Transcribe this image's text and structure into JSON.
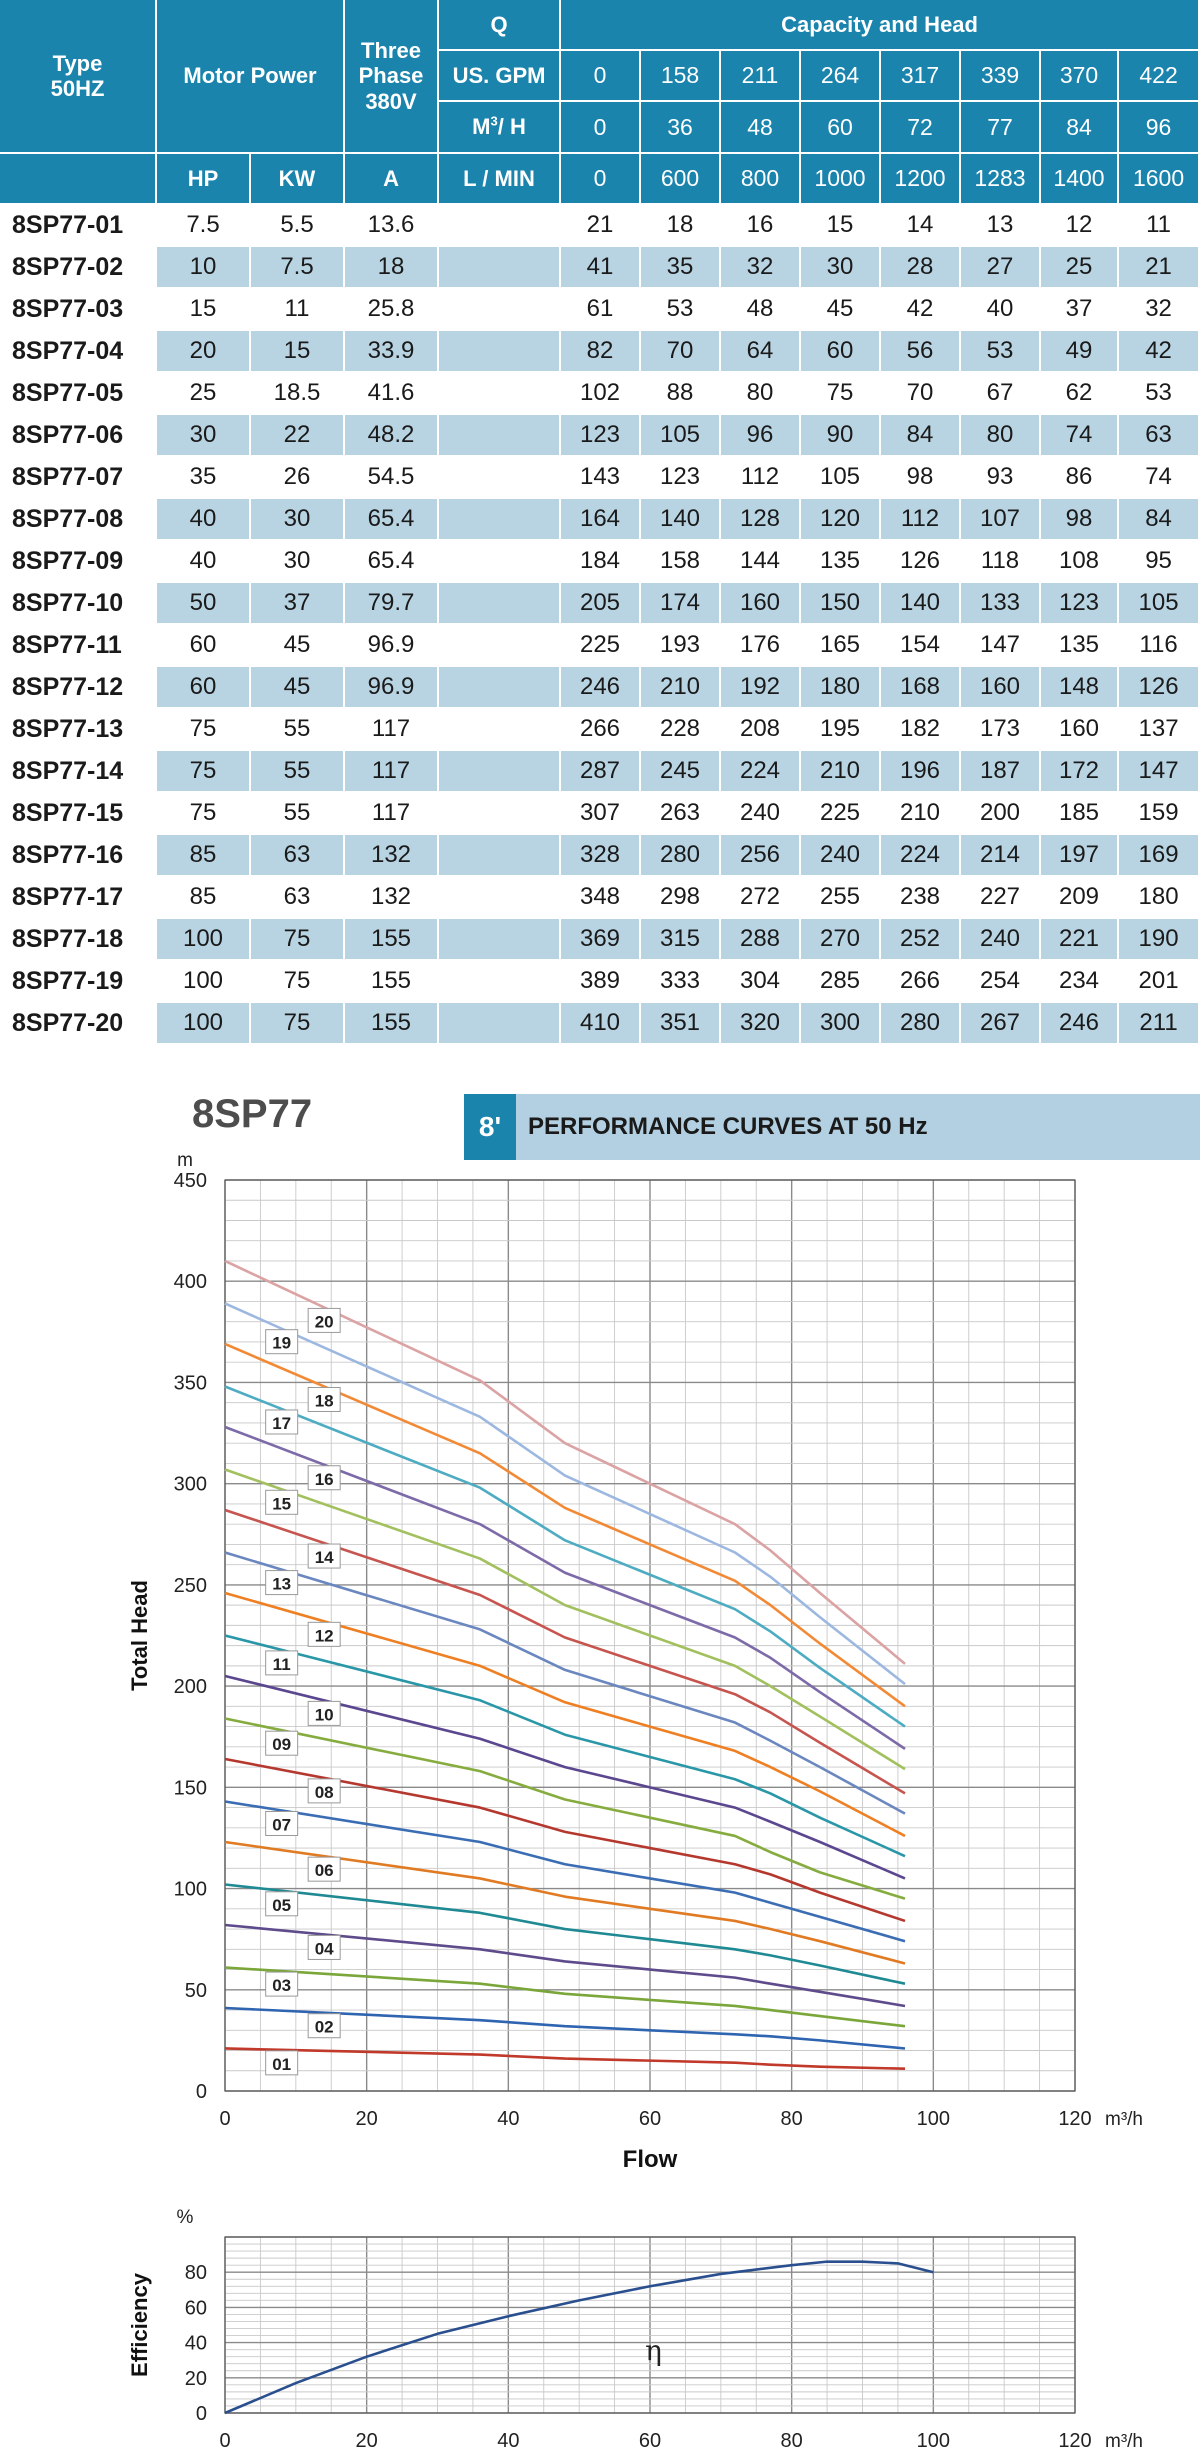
{
  "table": {
    "header": {
      "type_label": "Type",
      "type_sub": "50HZ",
      "motor_power": "Motor Power",
      "three_phase_l1": "Three",
      "three_phase_l2": "Phase",
      "three_phase_l3": "380V",
      "q_label": "Q",
      "capacity_head": "Capacity and Head",
      "usgpm_label": "US. GPM",
      "m3h_label_pre": "M",
      "m3h_label_sup": "3",
      "m3h_label_post": "/ H",
      "lmin_label": "L / MIN",
      "hp_label": "HP",
      "kw_label": "KW",
      "amp_label": "A",
      "usgpm": [
        "0",
        "158",
        "211",
        "264",
        "317",
        "339",
        "370",
        "422"
      ],
      "m3h": [
        "0",
        "36",
        "48",
        "60",
        "72",
        "77",
        "84",
        "96"
      ],
      "lmin": [
        "0",
        "600",
        "800",
        "1000",
        "1200",
        "1283",
        "1400",
        "1600"
      ]
    },
    "rows": [
      {
        "model": "8SP77-01",
        "hp": "7.5",
        "kw": "5.5",
        "amp": "13.6",
        "heads": [
          "21",
          "18",
          "16",
          "15",
          "14",
          "13",
          "12",
          "11"
        ]
      },
      {
        "model": "8SP77-02",
        "hp": "10",
        "kw": "7.5",
        "amp": "18",
        "heads": [
          "41",
          "35",
          "32",
          "30",
          "28",
          "27",
          "25",
          "21"
        ]
      },
      {
        "model": "8SP77-03",
        "hp": "15",
        "kw": "11",
        "amp": "25.8",
        "heads": [
          "61",
          "53",
          "48",
          "45",
          "42",
          "40",
          "37",
          "32"
        ]
      },
      {
        "model": "8SP77-04",
        "hp": "20",
        "kw": "15",
        "amp": "33.9",
        "heads": [
          "82",
          "70",
          "64",
          "60",
          "56",
          "53",
          "49",
          "42"
        ]
      },
      {
        "model": "8SP77-05",
        "hp": "25",
        "kw": "18.5",
        "amp": "41.6",
        "heads": [
          "102",
          "88",
          "80",
          "75",
          "70",
          "67",
          "62",
          "53"
        ]
      },
      {
        "model": "8SP77-06",
        "hp": "30",
        "kw": "22",
        "amp": "48.2",
        "heads": [
          "123",
          "105",
          "96",
          "90",
          "84",
          "80",
          "74",
          "63"
        ]
      },
      {
        "model": "8SP77-07",
        "hp": "35",
        "kw": "26",
        "amp": "54.5",
        "heads": [
          "143",
          "123",
          "112",
          "105",
          "98",
          "93",
          "86",
          "74"
        ]
      },
      {
        "model": "8SP77-08",
        "hp": "40",
        "kw": "30",
        "amp": "65.4",
        "heads": [
          "164",
          "140",
          "128",
          "120",
          "112",
          "107",
          "98",
          "84"
        ]
      },
      {
        "model": "8SP77-09",
        "hp": "40",
        "kw": "30",
        "amp": "65.4",
        "heads": [
          "184",
          "158",
          "144",
          "135",
          "126",
          "118",
          "108",
          "95"
        ]
      },
      {
        "model": "8SP77-10",
        "hp": "50",
        "kw": "37",
        "amp": "79.7",
        "heads": [
          "205",
          "174",
          "160",
          "150",
          "140",
          "133",
          "123",
          "105"
        ]
      },
      {
        "model": "8SP77-11",
        "hp": "60",
        "kw": "45",
        "amp": "96.9",
        "heads": [
          "225",
          "193",
          "176",
          "165",
          "154",
          "147",
          "135",
          "116"
        ]
      },
      {
        "model": "8SP77-12",
        "hp": "60",
        "kw": "45",
        "amp": "96.9",
        "heads": [
          "246",
          "210",
          "192",
          "180",
          "168",
          "160",
          "148",
          "126"
        ]
      },
      {
        "model": "8SP77-13",
        "hp": "75",
        "kw": "55",
        "amp": "117",
        "heads": [
          "266",
          "228",
          "208",
          "195",
          "182",
          "173",
          "160",
          "137"
        ]
      },
      {
        "model": "8SP77-14",
        "hp": "75",
        "kw": "55",
        "amp": "117",
        "heads": [
          "287",
          "245",
          "224",
          "210",
          "196",
          "187",
          "172",
          "147"
        ]
      },
      {
        "model": "8SP77-15",
        "hp": "75",
        "kw": "55",
        "amp": "117",
        "heads": [
          "307",
          "263",
          "240",
          "225",
          "210",
          "200",
          "185",
          "159"
        ]
      },
      {
        "model": "8SP77-16",
        "hp": "85",
        "kw": "63",
        "amp": "132",
        "heads": [
          "328",
          "280",
          "256",
          "240",
          "224",
          "214",
          "197",
          "169"
        ]
      },
      {
        "model": "8SP77-17",
        "hp": "85",
        "kw": "63",
        "amp": "132",
        "heads": [
          "348",
          "298",
          "272",
          "255",
          "238",
          "227",
          "209",
          "180"
        ]
      },
      {
        "model": "8SP77-18",
        "hp": "100",
        "kw": "75",
        "amp": "155",
        "heads": [
          "369",
          "315",
          "288",
          "270",
          "252",
          "240",
          "221",
          "190"
        ]
      },
      {
        "model": "8SP77-19",
        "hp": "100",
        "kw": "75",
        "amp": "155",
        "heads": [
          "389",
          "333",
          "304",
          "285",
          "266",
          "254",
          "234",
          "201"
        ]
      },
      {
        "model": "8SP77-20",
        "hp": "100",
        "kw": "75",
        "amp": "155",
        "heads": [
          "410",
          "351",
          "320",
          "300",
          "280",
          "267",
          "246",
          "211"
        ]
      }
    ]
  },
  "curves_heading": {
    "model": "8SP77",
    "code": "8ʹ",
    "title": "PERFORMANCE CURVES AT 50 Hz"
  },
  "chart_data": [
    {
      "type": "line",
      "xlabel": "Flow",
      "ylabel": "Total Head",
      "x_unit": "m³/h",
      "y_unit": "m",
      "xlim": [
        0,
        120
      ],
      "ylim": [
        0,
        450
      ],
      "xticks": [
        "0",
        "20",
        "40",
        "60",
        "80",
        "100",
        "120"
      ],
      "yticks": [
        "0",
        "50",
        "100",
        "150",
        "200",
        "250",
        "300",
        "350",
        "400",
        "450"
      ],
      "grid": true,
      "x": [
        0,
        36,
        48,
        60,
        72,
        77,
        84,
        96
      ],
      "series": [
        {
          "name": "01",
          "color": "#c0392b",
          "values": [
            21,
            18,
            16,
            15,
            14,
            13,
            12,
            11
          ]
        },
        {
          "name": "02",
          "color": "#2e64b0",
          "values": [
            41,
            35,
            32,
            30,
            28,
            27,
            25,
            21
          ]
        },
        {
          "name": "03",
          "color": "#7aa63a",
          "values": [
            61,
            53,
            48,
            45,
            42,
            40,
            37,
            32
          ]
        },
        {
          "name": "04",
          "color": "#5e4b8b",
          "values": [
            82,
            70,
            64,
            60,
            56,
            53,
            49,
            42
          ]
        },
        {
          "name": "05",
          "color": "#1f8a93",
          "values": [
            102,
            88,
            80,
            75,
            70,
            67,
            62,
            53
          ]
        },
        {
          "name": "06",
          "color": "#e07b24",
          "values": [
            123,
            105,
            96,
            90,
            84,
            80,
            74,
            63
          ]
        },
        {
          "name": "07",
          "color": "#3a6db3",
          "values": [
            143,
            123,
            112,
            105,
            98,
            93,
            86,
            74
          ]
        },
        {
          "name": "08",
          "color": "#b5382f",
          "values": [
            164,
            140,
            128,
            120,
            112,
            107,
            98,
            84
          ]
        },
        {
          "name": "09",
          "color": "#86ac3f",
          "values": [
            184,
            158,
            144,
            135,
            126,
            118,
            108,
            95
          ]
        },
        {
          "name": "10",
          "color": "#5b4690",
          "values": [
            205,
            174,
            160,
            150,
            140,
            133,
            123,
            105
          ]
        },
        {
          "name": "11",
          "color": "#2a97a8",
          "values": [
            225,
            193,
            176,
            165,
            154,
            147,
            135,
            116
          ]
        },
        {
          "name": "12",
          "color": "#ee7f22",
          "values": [
            246,
            210,
            192,
            180,
            168,
            160,
            148,
            126
          ]
        },
        {
          "name": "13",
          "color": "#6b87bf",
          "values": [
            266,
            228,
            208,
            195,
            182,
            173,
            160,
            137
          ]
        },
        {
          "name": "14",
          "color": "#c7554f",
          "values": [
            287,
            245,
            224,
            210,
            196,
            187,
            172,
            147
          ]
        },
        {
          "name": "15",
          "color": "#a2c05e",
          "values": [
            307,
            263,
            240,
            225,
            210,
            200,
            185,
            159
          ]
        },
        {
          "name": "16",
          "color": "#7d6aa8",
          "values": [
            328,
            280,
            256,
            240,
            224,
            214,
            197,
            169
          ]
        },
        {
          "name": "17",
          "color": "#4eacc2",
          "values": [
            348,
            298,
            272,
            255,
            238,
            227,
            209,
            180
          ]
        },
        {
          "name": "18",
          "color": "#f28a35",
          "values": [
            369,
            315,
            288,
            270,
            252,
            240,
            221,
            190
          ]
        },
        {
          "name": "19",
          "color": "#9db8e0",
          "values": [
            389,
            333,
            304,
            285,
            266,
            254,
            234,
            201
          ]
        },
        {
          "name": "20",
          "color": "#dba3a3",
          "values": [
            410,
            351,
            320,
            300,
            280,
            267,
            246,
            211
          ]
        }
      ]
    },
    {
      "type": "line",
      "xlabel": "",
      "ylabel": "Efficiency",
      "x_unit": "m³/h",
      "y_unit": "%",
      "xlim": [
        0,
        120
      ],
      "ylim": [
        0,
        100
      ],
      "xticks": [
        "0",
        "20",
        "40",
        "60",
        "80",
        "100",
        "120"
      ],
      "yticks": [
        "0",
        "20",
        "40",
        "60",
        "80"
      ],
      "grid": true,
      "annotation": "η",
      "series": [
        {
          "color": "#2a4f8f",
          "x": [
            0,
            10,
            20,
            30,
            40,
            50,
            60,
            70,
            80,
            85,
            90,
            95,
            100
          ],
          "values": [
            0,
            17,
            32,
            45,
            55,
            64,
            72,
            79,
            84,
            86,
            86,
            85,
            80
          ]
        }
      ]
    }
  ]
}
